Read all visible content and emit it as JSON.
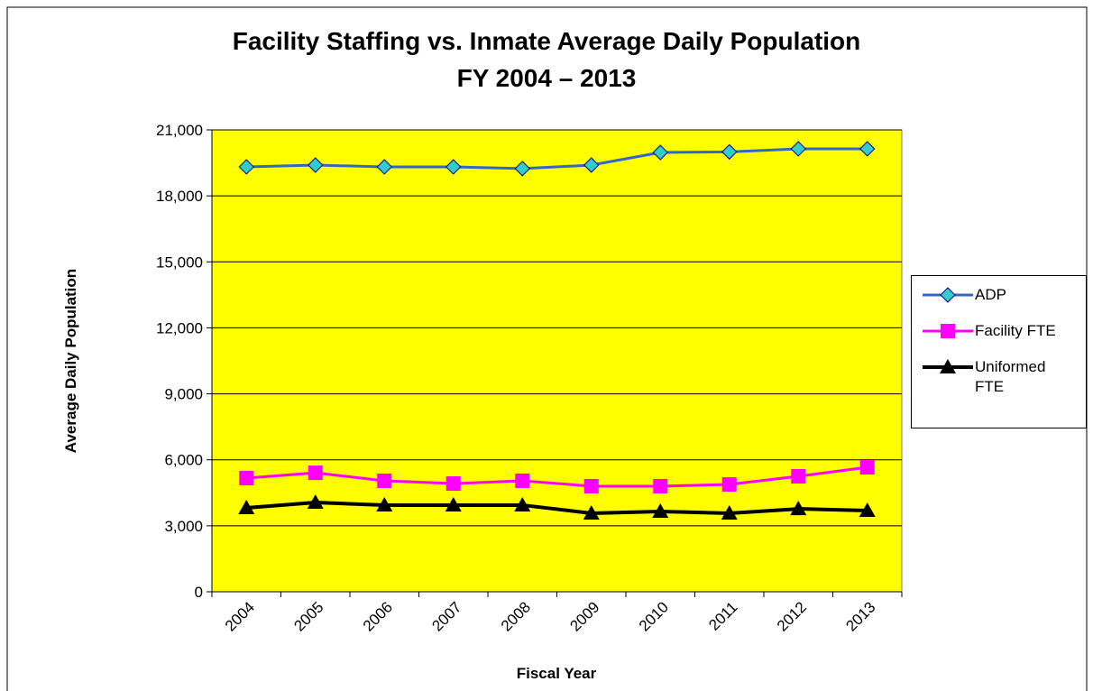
{
  "chart_data": {
    "type": "line",
    "title": "Facility Staffing vs. Inmate Average Daily Population",
    "subtitle": "FY 2004 – 2013",
    "y_label": "Average Daily Population",
    "x_label": "Fiscal Year",
    "categories": [
      "2004",
      "2005",
      "2006",
      "2007",
      "2008",
      "2009",
      "2010",
      "2011",
      "2012",
      "2013"
    ],
    "series": [
      {
        "name": "ADP",
        "color": "#3366cc",
        "marker": "diamond",
        "marker_color": "#33cccc",
        "values": [
          19320,
          19400,
          19320,
          19320,
          19240,
          19400,
          19975,
          20000,
          20140,
          20140
        ]
      },
      {
        "name": "Facility FTE",
        "color": "#ff00ff",
        "marker": "square",
        "marker_color": "#ff00ff",
        "values": [
          5170,
          5410,
          5045,
          4920,
          5045,
          4800,
          4800,
          4880,
          5250,
          5660
        ]
      },
      {
        "name": "Uniformed FTE",
        "color": "#000000",
        "marker": "triangle",
        "marker_color": "#000000",
        "values": [
          3815,
          4060,
          3940,
          3940,
          3940,
          3570,
          3650,
          3570,
          3770,
          3690
        ]
      }
    ],
    "ylim": [
      0,
      21000
    ],
    "yticks": [
      0,
      {
        "value": 3000,
        "label": "3,000"
      },
      {
        "value": 6000,
        "label": "6,000"
      },
      {
        "value": 9000,
        "label": "9,000"
      },
      {
        "value": 12000,
        "label": "12,000"
      },
      {
        "value": 15000,
        "label": "15,000"
      },
      {
        "value": 18000,
        "label": "18,000"
      },
      {
        "value": 21000,
        "label": "21,000"
      }
    ],
    "grid": true,
    "plot_background": "#ffff00",
    "legend": "right"
  }
}
